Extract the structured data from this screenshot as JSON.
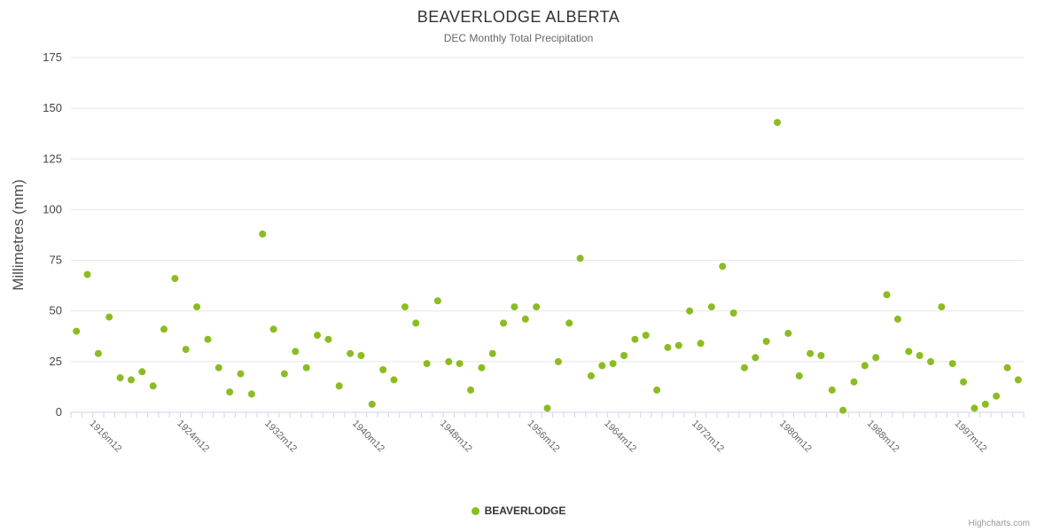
{
  "credits": "Highcharts.com",
  "x_axis": {
    "tick_labels": [
      "1916m12",
      "1924m12",
      "1932m12",
      "1940m12",
      "1948m12",
      "1956m12",
      "1964m12",
      "1972m12",
      "1980m12",
      "1988m12",
      "1997m12"
    ]
  },
  "y_axis": {
    "tick_labels": [
      "0",
      "25",
      "50",
      "75",
      "100",
      "125",
      "150",
      "175"
    ],
    "min": 0,
    "max": 175,
    "tick_interval": 25
  },
  "chart_data": {
    "type": "scatter",
    "title": "BEAVERLODGE ALBERTA",
    "subtitle": "DEC Monthly Total Precipitation",
    "xlabel": "",
    "ylabel": "Millimetres (mm)",
    "ylim": [
      0,
      175
    ],
    "grid": true,
    "legend_position": "bottom",
    "series": [
      {
        "name": "BEAVERLODGE",
        "color": "#8bbc21",
        "points": [
          [
            "1915m12",
            40
          ],
          [
            "1916m12",
            68
          ],
          [
            "1917m12",
            29
          ],
          [
            "1918m12",
            47
          ],
          [
            "1919m12",
            17
          ],
          [
            "1920m12",
            16
          ],
          [
            "1921m12",
            20
          ],
          [
            "1922m12",
            13
          ],
          [
            "1923m12",
            41
          ],
          [
            "1924m12",
            66
          ],
          [
            "1925m12",
            31
          ],
          [
            "1926m12",
            52
          ],
          [
            "1927m12",
            36
          ],
          [
            "1928m12",
            22
          ],
          [
            "1929m12",
            10
          ],
          [
            "1930m12",
            19
          ],
          [
            "1931m12",
            9
          ],
          [
            "1932m12",
            88
          ],
          [
            "1933m12",
            41
          ],
          [
            "1934m12",
            19
          ],
          [
            "1935m12",
            30
          ],
          [
            "1936m12",
            22
          ],
          [
            "1937m12",
            38
          ],
          [
            "1938m12",
            36
          ],
          [
            "1939m12",
            13
          ],
          [
            "1940m12",
            29
          ],
          [
            "1941m12",
            28
          ],
          [
            "1942m12",
            4
          ],
          [
            "1943m12",
            21
          ],
          [
            "1944m12",
            16
          ],
          [
            "1945m12",
            52
          ],
          [
            "1946m12",
            44
          ],
          [
            "1947m12",
            24
          ],
          [
            "1948m12",
            55
          ],
          [
            "1949m12",
            25
          ],
          [
            "1950m12",
            24
          ],
          [
            "1951m12",
            11
          ],
          [
            "1952m12",
            22
          ],
          [
            "1953m12",
            29
          ],
          [
            "1954m12",
            44
          ],
          [
            "1955m12",
            52
          ],
          [
            "1956m12",
            46
          ],
          [
            "1957m12",
            52
          ],
          [
            "1958m12",
            2
          ],
          [
            "1959m12",
            25
          ],
          [
            "1960m12",
            44
          ],
          [
            "1962m12",
            76
          ],
          [
            "1963m12",
            18
          ],
          [
            "1964m12",
            23
          ],
          [
            "1965m12",
            24
          ],
          [
            "1966m12",
            28
          ],
          [
            "1967m12",
            36
          ],
          [
            "1968m12",
            38
          ],
          [
            "1969m12",
            11
          ],
          [
            "1970m12",
            32
          ],
          [
            "1971m12",
            33
          ],
          [
            "1972m12",
            50
          ],
          [
            "1973m12",
            34
          ],
          [
            "1974m12",
            52
          ],
          [
            "1975m12",
            72
          ],
          [
            "1976m12",
            49
          ],
          [
            "1977m12",
            22
          ],
          [
            "1978m12",
            27
          ],
          [
            "1979m12",
            35
          ],
          [
            "1980m12",
            143
          ],
          [
            "1981m12",
            39
          ],
          [
            "1982m12",
            18
          ],
          [
            "1983m12",
            29
          ],
          [
            "1984m12",
            28
          ],
          [
            "1985m12",
            11
          ],
          [
            "1986m12",
            1
          ],
          [
            "1987m12",
            15
          ],
          [
            "1988m12",
            23
          ],
          [
            "1989m12",
            27
          ],
          [
            "1990m12",
            58
          ],
          [
            "1991m12",
            46
          ],
          [
            "1992m12",
            30
          ],
          [
            "1993m12",
            28
          ],
          [
            "1994m12",
            25
          ],
          [
            "1995m12",
            52
          ],
          [
            "1997m12",
            24
          ],
          [
            "1998m12",
            15
          ],
          [
            "1999m12",
            2
          ],
          [
            "2000m12",
            4
          ],
          [
            "2001m12",
            8
          ],
          [
            "2002m12",
            22
          ],
          [
            "2003m12",
            16
          ]
        ]
      }
    ]
  }
}
